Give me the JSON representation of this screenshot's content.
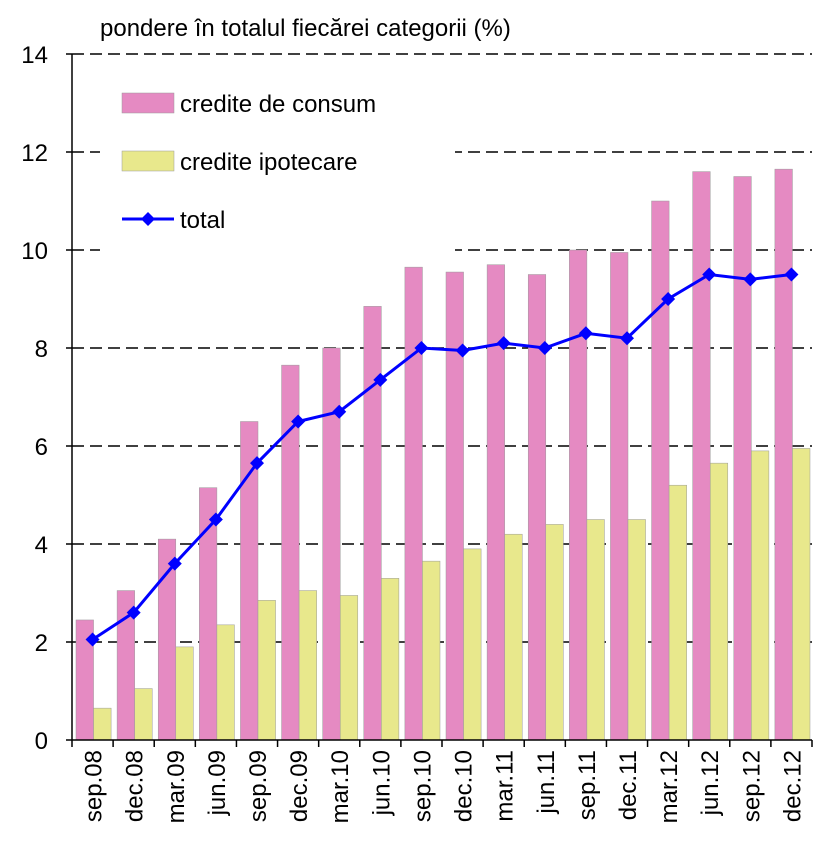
{
  "chart_data": {
    "type": "bar-line",
    "title": "pondere în totalul fiecărei categorii (%)",
    "categories": [
      "sep.08",
      "dec.08",
      "mar.09",
      "jun.09",
      "sep.09",
      "dec.09",
      "mar.10",
      "jun.10",
      "sep.10",
      "dec.10",
      "mar.11",
      "jun.11",
      "sep.11",
      "dec.11",
      "mar.12",
      "jun.12",
      "sep.12",
      "dec.12"
    ],
    "series": [
      {
        "name": "credite de consum",
        "color": "#e58ac2",
        "type": "bar",
        "values": [
          2.45,
          3.05,
          4.1,
          5.15,
          6.5,
          7.65,
          8.0,
          8.85,
          9.65,
          9.55,
          9.7,
          9.5,
          10.0,
          9.95,
          11.0,
          11.6,
          11.5,
          11.65
        ]
      },
      {
        "name": "credite ipotecare",
        "color": "#e8e88c",
        "type": "bar",
        "values": [
          0.65,
          1.05,
          1.9,
          2.35,
          2.85,
          3.05,
          2.95,
          3.3,
          3.65,
          3.9,
          4.2,
          4.4,
          4.5,
          4.5,
          5.2,
          5.65,
          5.9,
          5.95
        ]
      },
      {
        "name": "total",
        "color": "#0000ff",
        "type": "line",
        "values": [
          2.05,
          2.6,
          3.6,
          4.5,
          5.65,
          6.5,
          6.7,
          7.35,
          8.0,
          7.95,
          8.1,
          8.0,
          8.3,
          8.2,
          9.0,
          9.5,
          9.4,
          9.5
        ]
      }
    ],
    "ylim": [
      0,
      14
    ],
    "yticks": [
      0,
      2,
      4,
      6,
      8,
      10,
      12,
      14
    ],
    "grid": true,
    "legend": "top-left"
  }
}
